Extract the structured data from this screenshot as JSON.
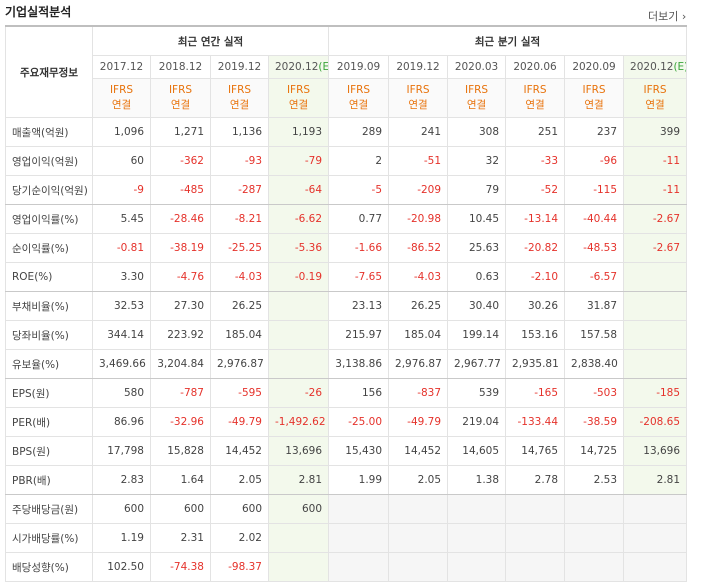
{
  "header": {
    "title": "기업실적분석",
    "more": "더보기"
  },
  "table": {
    "corner": "주요재무정보",
    "annual": {
      "title": "최근 연간 실적",
      "columns": [
        {
          "period": "2017.12",
          "basis": "IFRS",
          "scope": "연결"
        },
        {
          "period": "2018.12",
          "basis": "IFRS",
          "scope": "연결"
        },
        {
          "period": "2019.12",
          "basis": "IFRS",
          "scope": "연결"
        },
        {
          "period": "2020.12",
          "estimate": "(E)",
          "basis": "IFRS",
          "scope": "연결"
        }
      ]
    },
    "quarterly": {
      "title": "최근 분기 실적",
      "columns": [
        {
          "period": "2019.09",
          "basis": "IFRS",
          "scope": "연결"
        },
        {
          "period": "2019.12",
          "basis": "IFRS",
          "scope": "연결"
        },
        {
          "period": "2020.03",
          "basis": "IFRS",
          "scope": "연결"
        },
        {
          "period": "2020.06",
          "basis": "IFRS",
          "scope": "연결"
        },
        {
          "period": "2020.09",
          "basis": "IFRS",
          "scope": "연결"
        },
        {
          "period": "2020.12",
          "estimate": "(E)",
          "basis": "IFRS",
          "scope": "연결"
        }
      ]
    },
    "rows": [
      {
        "label": "매출액(억원)",
        "annual": [
          "1,096",
          "1,271",
          "1,136",
          "1,193"
        ],
        "quarterly": [
          "289",
          "241",
          "308",
          "251",
          "237",
          "399"
        ]
      },
      {
        "label": "영업이익(억원)",
        "annual": [
          "60",
          "-362",
          "-93",
          "-79"
        ],
        "quarterly": [
          "2",
          "-51",
          "32",
          "-33",
          "-96",
          "-11"
        ]
      },
      {
        "label": "당기순이익(억원)",
        "annual": [
          "-9",
          "-485",
          "-287",
          "-64"
        ],
        "quarterly": [
          "-5",
          "-209",
          "79",
          "-52",
          "-115",
          "-11"
        ]
      },
      {
        "label": "영업이익률(%)",
        "annual": [
          "5.45",
          "-28.46",
          "-8.21",
          "-6.62"
        ],
        "quarterly": [
          "0.77",
          "-20.98",
          "10.45",
          "-13.14",
          "-40.44",
          "-2.67"
        ]
      },
      {
        "label": "순이익률(%)",
        "annual": [
          "-0.81",
          "-38.19",
          "-25.25",
          "-5.36"
        ],
        "quarterly": [
          "-1.66",
          "-86.52",
          "25.63",
          "-20.82",
          "-48.53",
          "-2.67"
        ]
      },
      {
        "label": "ROE(%)",
        "annual": [
          "3.30",
          "-4.76",
          "-4.03",
          "-0.19"
        ],
        "quarterly": [
          "-7.65",
          "-4.03",
          "0.63",
          "-2.10",
          "-6.57",
          null
        ]
      },
      {
        "label": "부채비율(%)",
        "annual": [
          "32.53",
          "27.30",
          "26.25",
          null
        ],
        "quarterly": [
          "23.13",
          "26.25",
          "30.40",
          "30.26",
          "31.87",
          null
        ]
      },
      {
        "label": "당좌비율(%)",
        "annual": [
          "344.14",
          "223.92",
          "185.04",
          null
        ],
        "quarterly": [
          "215.97",
          "185.04",
          "199.14",
          "153.16",
          "157.58",
          null
        ]
      },
      {
        "label": "유보율(%)",
        "annual": [
          "3,469.66",
          "3,204.84",
          "2,976.87",
          null
        ],
        "quarterly": [
          "3,138.86",
          "2,976.87",
          "2,967.77",
          "2,935.81",
          "2,838.40",
          null
        ]
      },
      {
        "label": "EPS(원)",
        "annual": [
          "580",
          "-787",
          "-595",
          "-26"
        ],
        "quarterly": [
          "156",
          "-837",
          "539",
          "-165",
          "-503",
          "-185"
        ]
      },
      {
        "label": "PER(배)",
        "annual": [
          "86.96",
          "-32.96",
          "-49.79",
          "-1,492.62"
        ],
        "quarterly": [
          "-25.00",
          "-49.79",
          "219.04",
          "-133.44",
          "-38.59",
          "-208.65"
        ]
      },
      {
        "label": "BPS(원)",
        "annual": [
          "17,798",
          "15,828",
          "14,452",
          "13,696"
        ],
        "quarterly": [
          "15,430",
          "14,452",
          "14,605",
          "14,765",
          "14,725",
          "13,696"
        ]
      },
      {
        "label": "PBR(배)",
        "annual": [
          "2.83",
          "1.64",
          "2.05",
          "2.81"
        ],
        "quarterly": [
          "1.99",
          "2.05",
          "1.38",
          "2.78",
          "2.53",
          "2.81"
        ]
      },
      {
        "label": "주당배당금(원)",
        "annual": [
          "600",
          "600",
          "600",
          "600"
        ],
        "quarterly": [
          null,
          null,
          null,
          null,
          null,
          null
        ]
      },
      {
        "label": "시가배당률(%)",
        "annual": [
          "1.19",
          "2.31",
          "2.02",
          null
        ],
        "quarterly": [
          null,
          null,
          null,
          null,
          null,
          null
        ]
      },
      {
        "label": "배당성향(%)",
        "annual": [
          "102.50",
          "-74.38",
          "-98.37",
          null
        ],
        "quarterly": [
          null,
          null,
          null,
          null,
          null,
          null
        ]
      }
    ]
  }
}
